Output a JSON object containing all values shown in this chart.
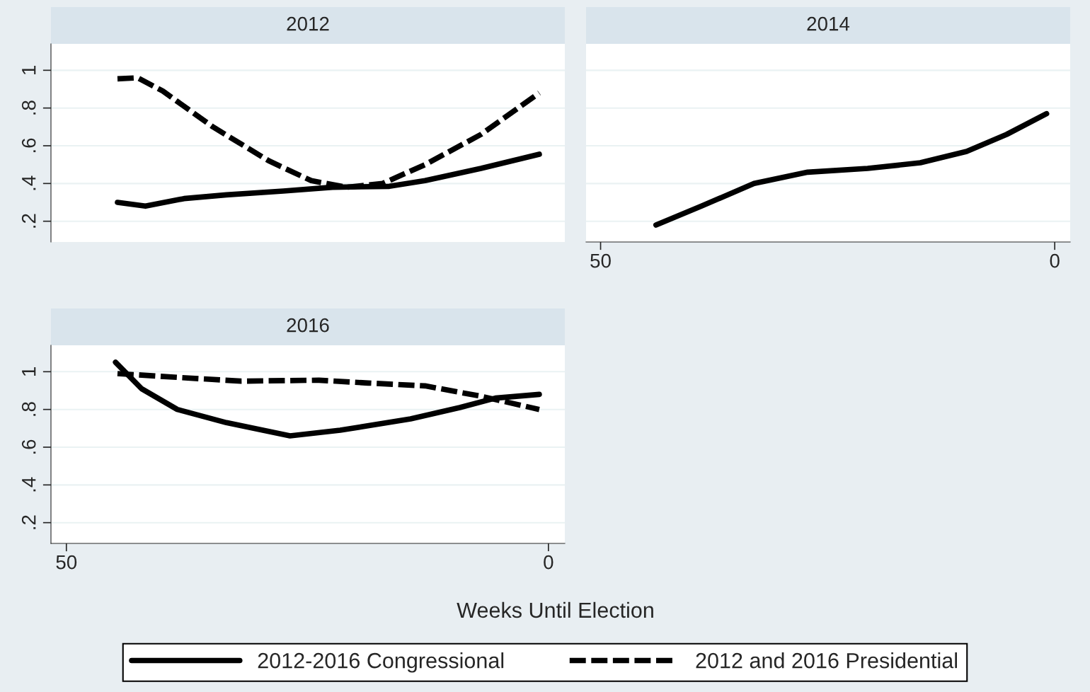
{
  "chart_data": [
    {
      "type": "line",
      "title": "2012",
      "xlim": [
        51.6,
        -1.7
      ],
      "ylim": [
        0.09,
        1.14
      ],
      "xticks": [
        50,
        0
      ],
      "yticks": [
        {
          "value": 0.2,
          "label": ".2"
        },
        {
          "value": 0.4,
          "label": ".4"
        },
        {
          "value": 0.6,
          "label": ".6"
        },
        {
          "value": 0.8,
          "label": ".8"
        },
        1
      ],
      "tick_labels": "y",
      "grid": "y",
      "legend": "bottom",
      "series": [
        {
          "name": "2012-2016 Congressional",
          "color": "#000000",
          "line_style": "solid",
          "x": [
            44.7,
            41.8,
            37.8,
            33.4,
            27.5,
            22.4,
            16.5,
            12.8,
            7.0,
            0.95
          ],
          "values": [
            0.3,
            0.28,
            0.32,
            0.34,
            0.36,
            0.38,
            0.385,
            0.415,
            0.48,
            0.555
          ]
        },
        {
          "name": "2012 and 2016 Presidential",
          "color": "#000000",
          "line_style": "dashed",
          "x": [
            44.7,
            42.6,
            40.0,
            34.8,
            29.0,
            24.6,
            20.9,
            17.2,
            12.8,
            7.0,
            0.95
          ],
          "values": [
            0.955,
            0.96,
            0.89,
            0.7,
            0.52,
            0.415,
            0.38,
            0.4,
            0.5,
            0.66,
            0.88
          ]
        }
      ]
    },
    {
      "type": "line",
      "title": "2014",
      "xlim": [
        51.6,
        -1.7
      ],
      "ylim": [
        0.09,
        1.14
      ],
      "xticks": [
        50,
        0
      ],
      "yticks": [
        0.2,
        0.4,
        0.6,
        0.8,
        1
      ],
      "tick_labels": "x",
      "grid": "y",
      "series": [
        {
          "color": "#000000",
          "line_style": "solid",
          "x": [
            43.9,
            38.9,
            33.1,
            27.2,
            20.6,
            14.8,
            9.7,
            5.3,
            0.9
          ],
          "values": [
            0.18,
            0.28,
            0.4,
            0.46,
            0.48,
            0.51,
            0.57,
            0.66,
            0.77
          ]
        }
      ]
    },
    {
      "type": "line",
      "title": "2016",
      "xlabel": "Weeks Until Election",
      "xlim": [
        51.6,
        -1.7
      ],
      "ylim": [
        0.09,
        1.14
      ],
      "xticks": [
        50,
        0
      ],
      "yticks": [
        {
          "value": 0.2,
          "label": ".2"
        },
        {
          "value": 0.4,
          "label": ".4"
        },
        {
          "value": 0.6,
          "label": ".6"
        },
        {
          "value": 0.8,
          "label": ".8"
        },
        1
      ],
      "grid": "y",
      "series": [
        {
          "color": "#000000",
          "line_style": "solid",
          "x": [
            44.9,
            42.2,
            38.5,
            33.4,
            26.8,
            21.6,
            14.3,
            9.2,
            5.5,
            0.95
          ],
          "values": [
            1.05,
            0.91,
            0.8,
            0.73,
            0.66,
            0.69,
            0.75,
            0.81,
            0.86,
            0.88
          ]
        },
        {
          "color": "#000000",
          "line_style": "dashed",
          "x": [
            44.7,
            38.5,
            31.9,
            23.8,
            18.7,
            12.8,
            7.0,
            0.95
          ],
          "values": [
            0.99,
            0.97,
            0.95,
            0.955,
            0.94,
            0.925,
            0.87,
            0.8
          ]
        }
      ]
    }
  ]
}
